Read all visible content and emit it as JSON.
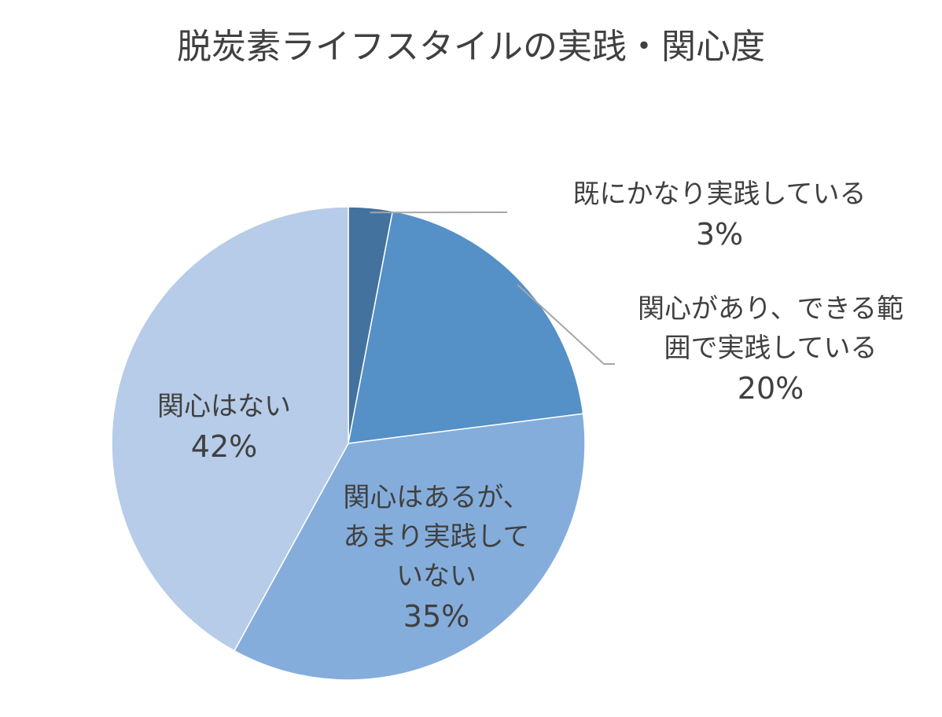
{
  "chart_data": {
    "type": "pie",
    "title": "脱炭素ライフスタイルの実践・関心度",
    "slices": [
      {
        "label_lines": [
          "既にかなり実践している"
        ],
        "value": 3,
        "value_label": "3%",
        "color": "#44729f"
      },
      {
        "label_lines": [
          "関心があり、できる範",
          "囲で実践している"
        ],
        "value": 20,
        "value_label": "20%",
        "color": "#5590c6"
      },
      {
        "label_lines": [
          "関心はあるが、",
          "あまり実践して",
          "いない"
        ],
        "value": 35,
        "value_label": "35%",
        "color": "#84addb"
      },
      {
        "label_lines": [
          "関心はない"
        ],
        "value": 42,
        "value_label": "42%",
        "color": "#b6cce8"
      }
    ],
    "start_angle": "12 o'clock",
    "direction": "clockwise",
    "legend": "none",
    "leader_line_color": "#a6a6a6"
  }
}
